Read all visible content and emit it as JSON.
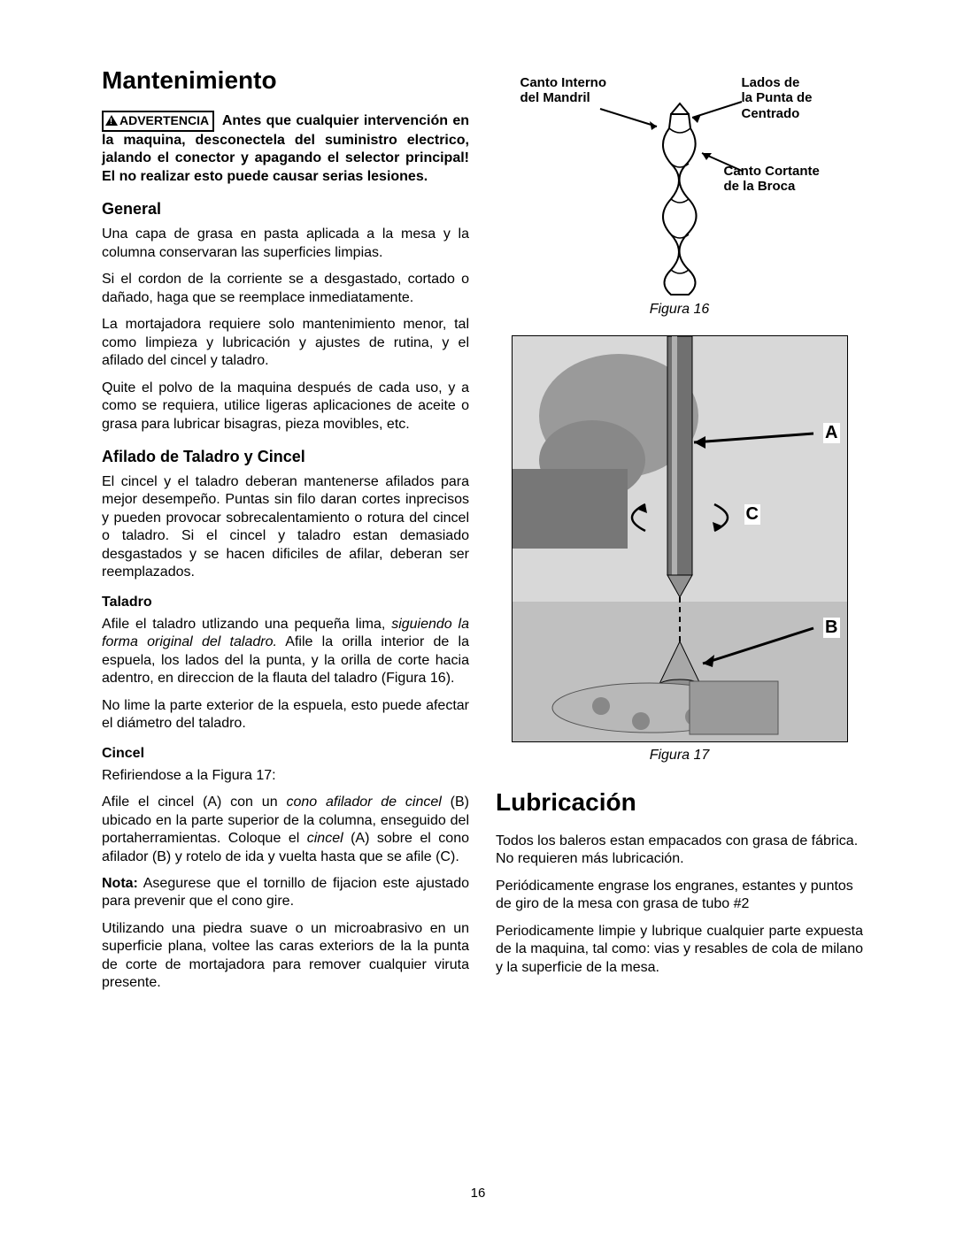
{
  "page_number": "16",
  "left": {
    "title": "Mantenimiento",
    "warning_label": "ADVERTENCIA",
    "warning_text": "Antes que cualquier intervención en la maquina, desconectela del suministro electrico, jalando el conector y apagando el selector principal! El no realizar esto puede causar serias lesiones.",
    "h_general": "General",
    "p_general_1": "Una capa de grasa en pasta aplicada a la mesa y la columna conservaran las superficies limpias.",
    "p_general_2": "Si el cordon de la corriente se a desgastado, cortado o dañado, haga que se reemplace inmediatamente.",
    "p_general_3": "La mortajadora requiere solo mantenimiento menor, tal como limpieza y lubricación y ajustes de rutina, y el afilado del cincel y taladro.",
    "p_general_4": "Quite el polvo de la maquina después de cada uso, y a como se requiera, utilice ligeras aplicaciones de aceite o grasa para lubricar bisagras, pieza movibles, etc.",
    "h_afilado": "Afilado de Taladro y Cincel",
    "p_afilado_1": "El cincel y el taladro deberan mantenerse afilados para mejor desempeño. Puntas sin filo daran cortes inprecisos y pueden provocar sobrecalentamiento o rotura del cincel o taladro. Si el cincel y taladro estan demasiado desgastados y se hacen dificiles de afilar, deberan ser reemplazados.",
    "h_taladro": "Taladro",
    "p_taladro_1a": "Afile el taladro utlizando una pequeña lima, ",
    "p_taladro_1b": "siguiendo la forma original del taladro.",
    "p_taladro_1c": " Afile la orilla interior de la espuela, los lados del la punta, y la orilla de corte hacia adentro, en direccion de la flauta del taladro (Figura 16).",
    "p_taladro_2": "No lime la parte exterior de la espuela, esto puede afectar el diámetro del taladro.",
    "h_cincel": "Cincel",
    "p_cincel_1": "Refiriendose a la Figura 17:",
    "p_cincel_2a": "Afile el cincel (A) con un ",
    "p_cincel_2b": "cono afilador de cincel",
    "p_cincel_2c": " (B) ubicado en la parte superior de la columna, enseguido del portaherramientas. Coloque el ",
    "p_cincel_2d": "cincel",
    "p_cincel_2e": " (A) sobre el cono afilador (B) y rotelo de ida y vuelta hasta que se afile (C).",
    "p_cincel_3a": "Nota:",
    "p_cincel_3b": " Asegurese que el tornillo de fijacion este ajustado para prevenir que el cono gire.",
    "p_cincel_4": "Utilizando una piedra suave o un microabrasivo en un superficie plana, voltee las caras exteriors de la la punta de corte de mortajadora para remover cualquier viruta presente."
  },
  "right": {
    "fig16": {
      "caption": "Figura 16",
      "labels": {
        "canto_interno": "Canto Interno\ndel Mandril",
        "lados": "Lados de\nla Punta de\nCentrado",
        "canto_cortante": "Canto Cortante\nde la Broca"
      }
    },
    "fig17": {
      "caption": "Figura 17",
      "labels": {
        "a": "A",
        "b": "B",
        "c": "C"
      }
    },
    "title_lub": "Lubricación",
    "p_lub_1": "Todos los baleros estan empacados con grasa de fábrica. No requieren más lubricación.",
    "p_lub_2": "Periódicamente engrase los engranes, estantes y puntos de giro de la mesa con grasa de tubo #2",
    "p_lub_3": "Periodicamente limpie y lubrique cualquier parte expuesta de la maquina, tal como: vias y resables de cola de milano y la superficie de la mesa."
  }
}
